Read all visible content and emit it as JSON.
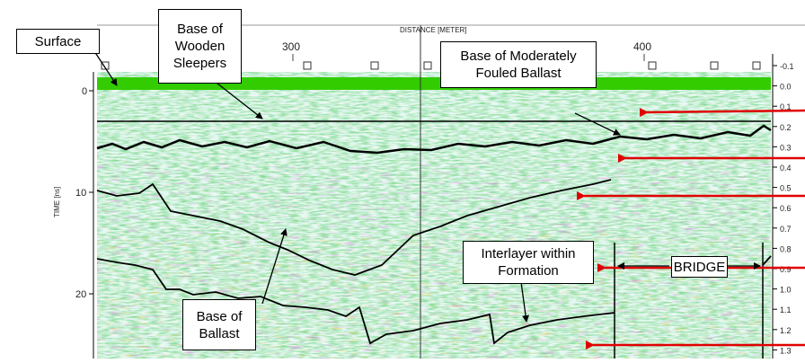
{
  "header": {
    "axis_title": "DISTANCE [METER]",
    "x_ticks": [
      "300",
      "400"
    ]
  },
  "left_axis": {
    "title": "TIME [ns]",
    "ticks": [
      "0",
      "10",
      "20"
    ]
  },
  "right_axis": {
    "ticks": [
      "-0.1",
      "0.0",
      "0.1",
      "0.2",
      "0.3",
      "0.4",
      "0.5",
      "0.6",
      "0.7",
      "0.8",
      "0.9",
      "1.0",
      "1.1",
      "1.2",
      "1.3"
    ]
  },
  "labels": {
    "surface": "Surface",
    "wooden_sleepers": [
      "Base of",
      "Wooden",
      "Sleepers"
    ],
    "fouled_ballast": [
      "Base of Moderately",
      "Fouled Ballast"
    ],
    "base_ballast": [
      "Base of",
      "Ballast"
    ],
    "interlayer": [
      "Interlayer within",
      "Formation"
    ],
    "bridge": "BRIDGE"
  },
  "colors": {
    "accent_arrow": "#e00000",
    "surface_band": "#33cc00",
    "radar_green": "#2eaa2e",
    "radar_cyan": "#7fe0e6",
    "radar_magenta": "#cc33cc",
    "radar_orange": "#ff8800"
  }
}
